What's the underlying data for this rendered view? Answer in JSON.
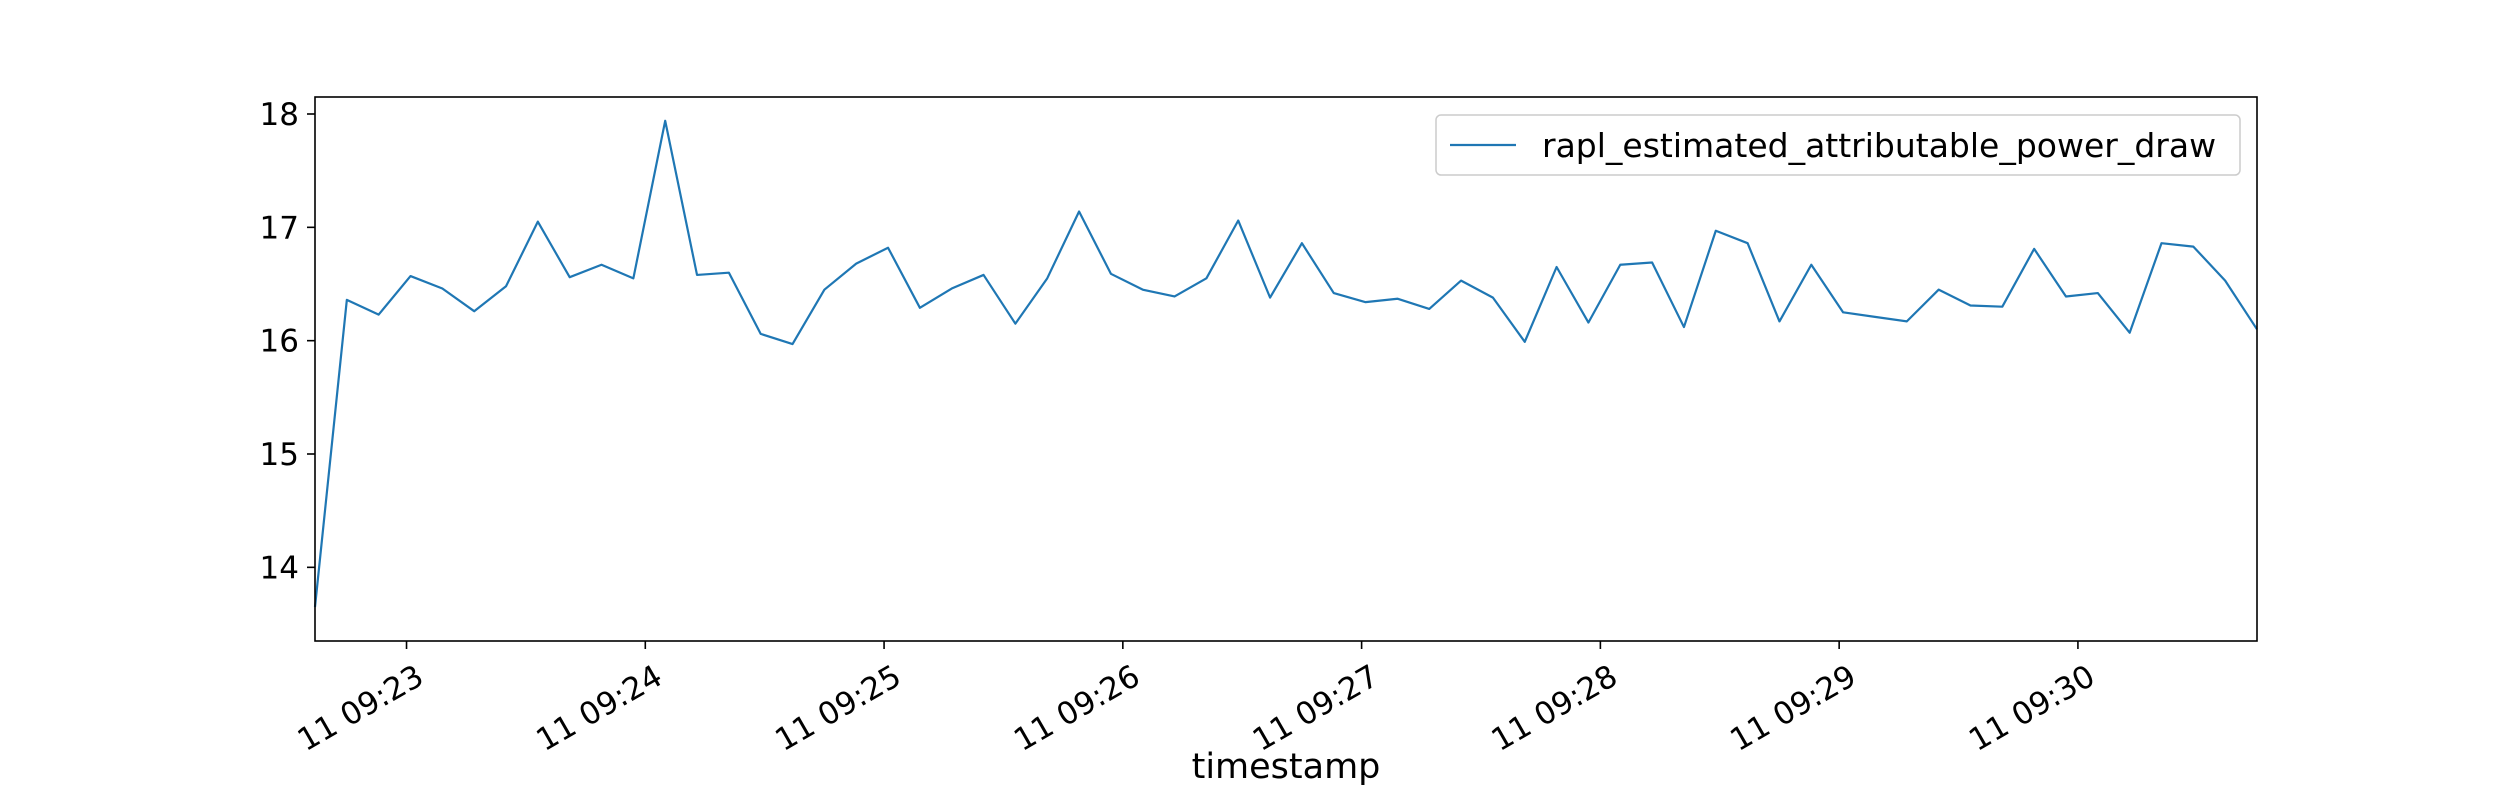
{
  "chart_data": {
    "type": "line",
    "title": "",
    "xlabel": "timestamp",
    "ylabel": "",
    "x_start": "11 09:22:37",
    "x_step_seconds": 8,
    "x_ticks": [
      "11 09:23",
      "11 09:24",
      "11 09:25",
      "11 09:26",
      "11 09:27",
      "11 09:28",
      "11 09:29",
      "11 09:30"
    ],
    "y_ticks": [
      14,
      15,
      16,
      17,
      18
    ],
    "ylim": [
      13.35,
      18.15
    ],
    "grid": false,
    "legend_position": "top-right",
    "series": [
      {
        "name": "rapl_estimated_attributable_power_draw",
        "color": "#1f77b4",
        "values": [
          13.65,
          16.36,
          16.23,
          16.57,
          16.46,
          16.26,
          16.48,
          17.05,
          16.56,
          16.67,
          16.55,
          17.94,
          16.58,
          16.6,
          16.06,
          15.97,
          16.45,
          16.68,
          16.82,
          16.29,
          16.46,
          16.58,
          16.15,
          16.55,
          17.14,
          16.59,
          16.45,
          16.39,
          16.55,
          17.06,
          16.38,
          16.86,
          16.42,
          16.34,
          16.37,
          16.28,
          16.53,
          16.38,
          15.99,
          16.65,
          16.16,
          16.67,
          16.69,
          16.12,
          16.97,
          16.86,
          16.17,
          16.67,
          16.25,
          16.21,
          16.17,
          16.45,
          16.31,
          16.3,
          16.81,
          16.39,
          16.42,
          16.07,
          16.86,
          16.83,
          16.53,
          16.1
        ]
      }
    ]
  }
}
